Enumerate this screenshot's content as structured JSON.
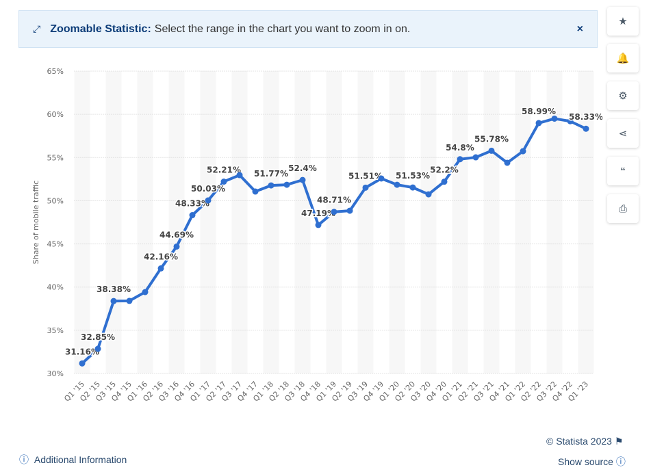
{
  "banner": {
    "title": "Zoomable Statistic:",
    "text": "Select the range in the chart you want to zoom in on."
  },
  "chart_data": {
    "type": "line",
    "y_label": "Share of mobile traffic",
    "categories": [
      "Q1 '15",
      "Q2 '15",
      "Q3 '15",
      "Q4 '15",
      "Q1 '16",
      "Q2 '16",
      "Q3 '16",
      "Q4 '16",
      "Q1 '17",
      "Q2 '17",
      "Q3 '17",
      "Q4 '17",
      "Q1 '18",
      "Q2 '18",
      "Q3 '18",
      "Q4 '18",
      "Q1 '19",
      "Q2 '19",
      "Q3 '19",
      "Q4 '19",
      "Q1 '20",
      "Q2 '20",
      "Q3 '20",
      "Q4 '20",
      "Q1 '21",
      "Q2 '21",
      "Q3 '21",
      "Q4 '21",
      "Q1 '22",
      "Q2 '22",
      "Q3 '22",
      "Q4 '22",
      "Q1 '23"
    ],
    "series": [
      {
        "name": "Share of mobile traffic",
        "color": "#2f6fd0",
        "values": [
          31.16,
          32.85,
          38.38,
          38.4,
          39.42,
          42.16,
          44.69,
          48.33,
          50.03,
          52.21,
          52.96,
          51.06,
          51.77,
          51.85,
          52.4,
          47.19,
          48.71,
          48.84,
          51.51,
          52.57,
          51.85,
          51.53,
          50.74,
          52.2,
          54.8,
          55.02,
          55.78,
          54.39,
          55.73,
          58.99,
          59.5,
          59.2,
          58.33
        ],
        "value_labels": [
          "31.16%",
          "32.85%",
          "38.38%",
          null,
          null,
          "42.16%",
          "44.69%",
          "48.33%",
          "50.03%",
          "52.21%",
          null,
          null,
          "51.77%",
          null,
          "52.4%",
          "47.19%",
          "48.71%",
          null,
          "51.51%",
          null,
          null,
          "51.53%",
          null,
          "52.2%",
          "54.8%",
          null,
          "55.78%",
          null,
          null,
          "58.99%",
          null,
          null,
          "58.33%"
        ]
      }
    ],
    "ylim": [
      30,
      65
    ],
    "yticks": [
      {
        "value": 30,
        "label": "30%"
      },
      {
        "value": 35,
        "label": "35%"
      },
      {
        "value": 40,
        "label": "40%"
      },
      {
        "value": 45,
        "label": "45%"
      },
      {
        "value": 50,
        "label": "50%"
      },
      {
        "value": 55,
        "label": "55%"
      },
      {
        "value": 60,
        "label": "60%"
      },
      {
        "value": 65,
        "label": "65%"
      }
    ],
    "grid": true
  },
  "footer": {
    "copyright": "© Statista 2023",
    "source": "Show source",
    "info": "Additional Information"
  }
}
